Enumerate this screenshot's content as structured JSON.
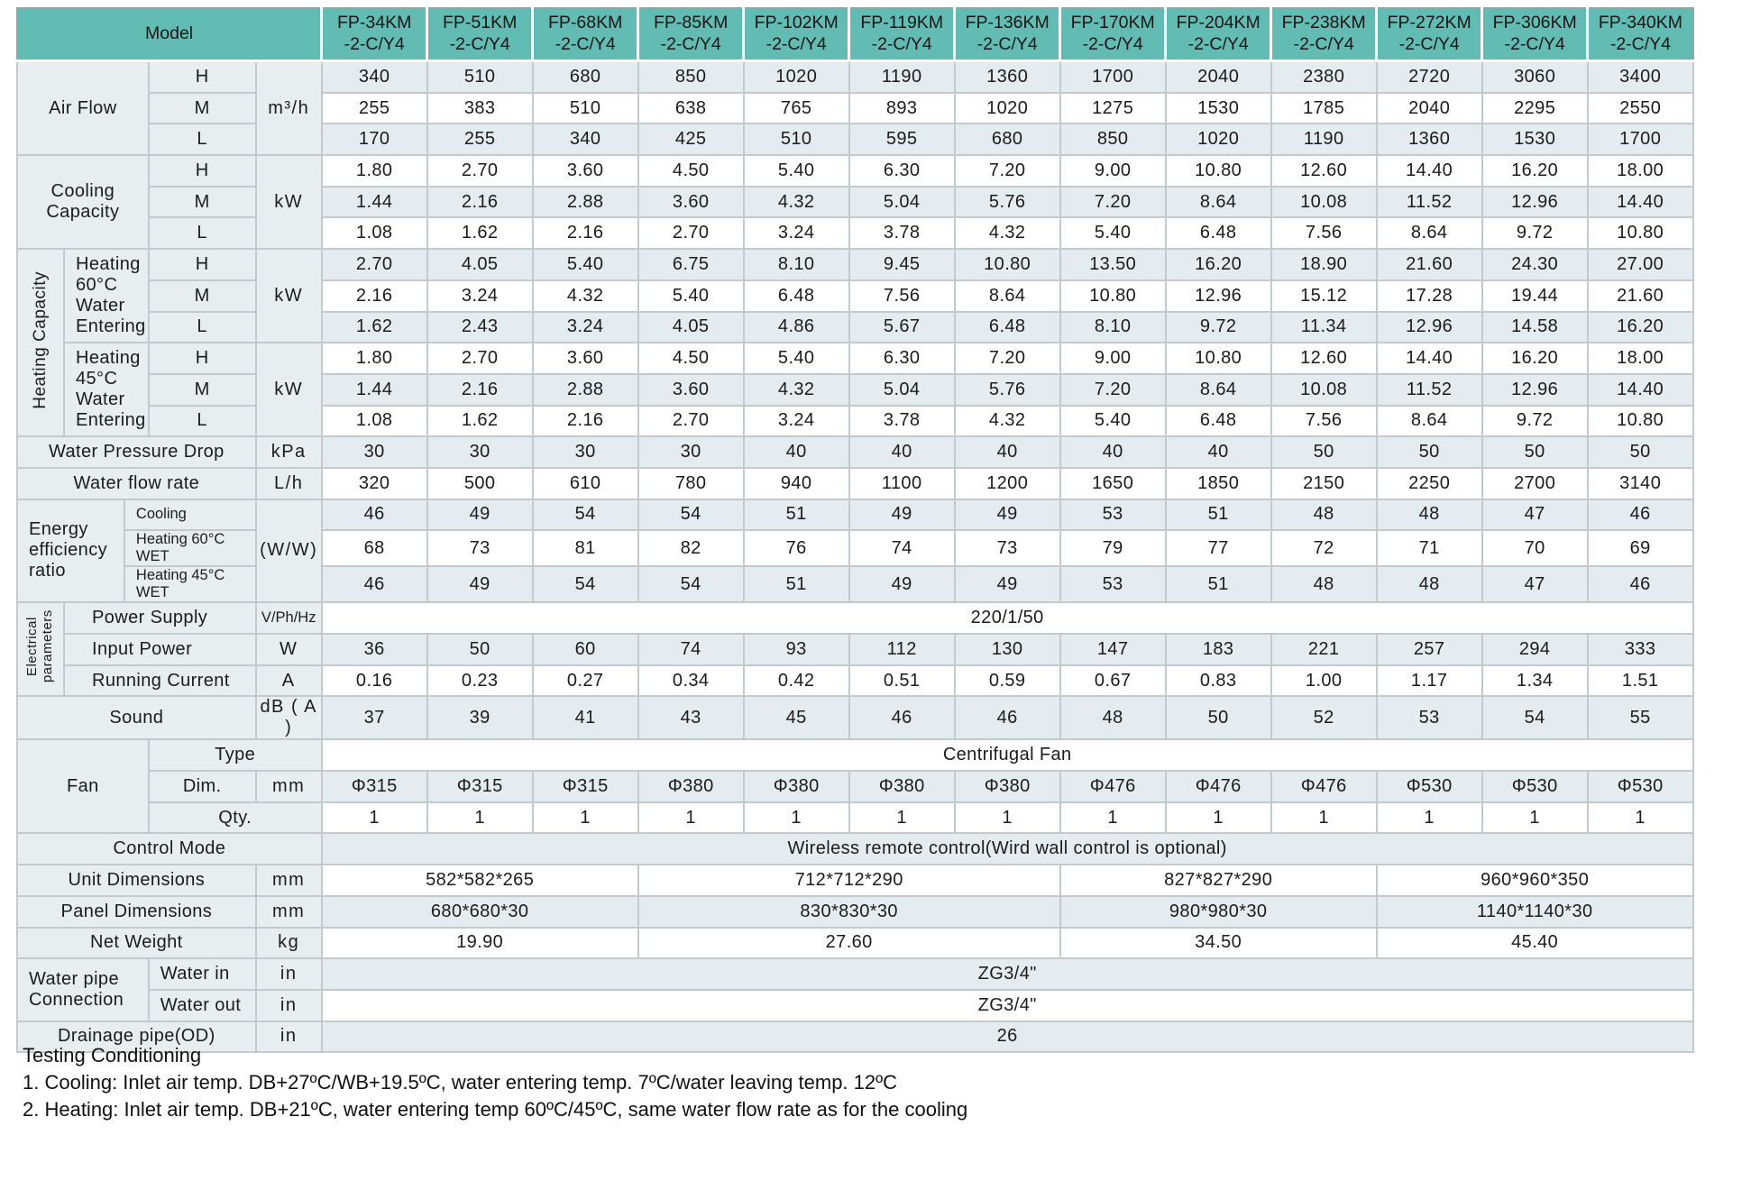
{
  "colors": {
    "teal": "#62bcb3",
    "labbg": "#e8eef0",
    "lightbg": "#e4ecef",
    "bmin": "#c3cacd",
    "bmaj": "#99a1a5",
    "text": "#1b1b1b"
  },
  "footer": {
    "title": "Testing Conditioning",
    "notes": [
      "1. Cooling: Inlet air temp. DB+27ºC/WB+19.5ºC, water entering temp. 7ºC/water leaving temp. 12ºC",
      "2. Heating: Inlet air temp. DB+21ºC, water entering temp 60ºC/45ºC, same water flow rate as for the cooling"
    ]
  },
  "table": {
    "header": {
      "cells": [
        {
          "t": "Model",
          "cs": 5,
          "n": "model-header"
        },
        {
          "t": "FP-34KM\n-2-C/Y4",
          "n": "model-column-header"
        },
        {
          "t": "FP-51KM\n-2-C/Y4",
          "n": "model-column-header"
        },
        {
          "t": "FP-68KM\n-2-C/Y4",
          "n": "model-column-header"
        },
        {
          "t": "FP-85KM\n-2-C/Y4",
          "n": "model-column-header"
        },
        {
          "t": "FP-102KM\n-2-C/Y4",
          "n": "model-column-header"
        },
        {
          "t": "FP-119KM\n-2-C/Y4",
          "n": "model-column-header"
        },
        {
          "t": "FP-136KM\n-2-C/Y4",
          "n": "model-column-header"
        },
        {
          "t": "FP-170KM\n-2-C/Y4",
          "n": "model-column-header"
        },
        {
          "t": "FP-204KM\n-2-C/Y4",
          "n": "model-column-header"
        },
        {
          "t": "FP-238KM\n-2-C/Y4",
          "n": "model-column-header"
        },
        {
          "t": "FP-272KM\n-2-C/Y4",
          "n": "model-column-header"
        },
        {
          "t": "FP-306KM\n-2-C/Y4",
          "n": "model-column-header"
        },
        {
          "t": "FP-340KM\n-2-C/Y4",
          "n": "model-column-header"
        }
      ]
    },
    "rows": [
      {
        "cells": [
          {
            "t": "Air Flow",
            "cs": 3,
            "rs": 3,
            "c": "lab",
            "n": "row-label-air-flow"
          },
          {
            "t": "H",
            "c": "lab",
            "n": "speed-label-h"
          },
          {
            "t": "m³/h",
            "rs": 3,
            "c": "lab u",
            "n": "unit-m3h"
          }
        ],
        "vc": "lt",
        "values": [
          "340",
          "510",
          "680",
          "850",
          "1020",
          "1190",
          "1360",
          "1700",
          "2040",
          "2380",
          "2720",
          "3060",
          "3400"
        ]
      },
      {
        "cells": [
          {
            "t": "M",
            "c": "lab",
            "n": "speed-label-m"
          }
        ],
        "vc": "wh",
        "values": [
          "255",
          "383",
          "510",
          "638",
          "765",
          "893",
          "1020",
          "1275",
          "1530",
          "1785",
          "2040",
          "2295",
          "2550"
        ]
      },
      {
        "cells": [
          {
            "t": "L",
            "c": "lab",
            "n": "speed-label-l"
          }
        ],
        "vc": "lt",
        "values": [
          "170",
          "255",
          "340",
          "425",
          "510",
          "595",
          "680",
          "850",
          "1020",
          "1190",
          "1360",
          "1530",
          "1700"
        ]
      },
      {
        "cells": [
          {
            "t": "Cooling Capacity",
            "cs": 3,
            "rs": 3,
            "c": "lab mj",
            "n": "row-label-cooling-capacity"
          },
          {
            "t": "H",
            "c": "lab mj",
            "n": "speed-label-h"
          },
          {
            "t": "kW",
            "rs": 3,
            "c": "lab u mj",
            "n": "unit-kw"
          }
        ],
        "vc": "wh mj",
        "values": [
          "1.80",
          "2.70",
          "3.60",
          "4.50",
          "5.40",
          "6.30",
          "7.20",
          "9.00",
          "10.80",
          "12.60",
          "14.40",
          "16.20",
          "18.00"
        ]
      },
      {
        "cells": [
          {
            "t": "M",
            "c": "lab",
            "n": "speed-label-m"
          }
        ],
        "vc": "lt",
        "values": [
          "1.44",
          "2.16",
          "2.88",
          "3.60",
          "4.32",
          "5.04",
          "5.76",
          "7.20",
          "8.64",
          "10.08",
          "11.52",
          "12.96",
          "14.40"
        ]
      },
      {
        "cells": [
          {
            "t": "L",
            "c": "lab",
            "n": "speed-label-l"
          }
        ],
        "vc": "wh",
        "values": [
          "1.08",
          "1.62",
          "2.16",
          "2.70",
          "3.24",
          "3.78",
          "4.32",
          "5.40",
          "6.48",
          "7.56",
          "8.64",
          "9.72",
          "10.80"
        ]
      },
      {
        "cells": [
          {
            "t": "Heating Capacity",
            "rs": 6,
            "c": "lab vert mj",
            "n": "row-label-heating-capacity"
          },
          {
            "t": "Heating 60°C Water Entering",
            "cs": 2,
            "rs": 3,
            "c": "lab left mj",
            "n": "row-label-heating-60"
          },
          {
            "t": "H",
            "c": "lab mj",
            "n": "speed-label-h"
          },
          {
            "t": "kW",
            "rs": 3,
            "c": "lab u mj",
            "n": "unit-kw"
          }
        ],
        "vc": "lt mj",
        "values": [
          "2.70",
          "4.05",
          "5.40",
          "6.75",
          "8.10",
          "9.45",
          "10.80",
          "13.50",
          "16.20",
          "18.90",
          "21.60",
          "24.30",
          "27.00"
        ]
      },
      {
        "cells": [
          {
            "t": "M",
            "c": "lab",
            "n": "speed-label-m"
          }
        ],
        "vc": "wh",
        "values": [
          "2.16",
          "3.24",
          "4.32",
          "5.40",
          "6.48",
          "7.56",
          "8.64",
          "10.80",
          "12.96",
          "15.12",
          "17.28",
          "19.44",
          "21.60"
        ]
      },
      {
        "cells": [
          {
            "t": "L",
            "c": "lab",
            "n": "speed-label-l"
          }
        ],
        "vc": "lt",
        "values": [
          "1.62",
          "2.43",
          "3.24",
          "4.05",
          "4.86",
          "5.67",
          "6.48",
          "8.10",
          "9.72",
          "11.34",
          "12.96",
          "14.58",
          "16.20"
        ]
      },
      {
        "cells": [
          {
            "t": "Heating 45°C Water Entering",
            "cs": 2,
            "rs": 3,
            "c": "lab left mj",
            "n": "row-label-heating-45"
          },
          {
            "t": "H",
            "c": "lab mj",
            "n": "speed-label-h"
          },
          {
            "t": "kW",
            "rs": 3,
            "c": "lab u mj",
            "n": "unit-kw"
          }
        ],
        "vc": "wh mj",
        "values": [
          "1.80",
          "2.70",
          "3.60",
          "4.50",
          "5.40",
          "6.30",
          "7.20",
          "9.00",
          "10.80",
          "12.60",
          "14.40",
          "16.20",
          "18.00"
        ]
      },
      {
        "cells": [
          {
            "t": "M",
            "c": "lab",
            "n": "speed-label-m"
          }
        ],
        "vc": "lt",
        "values": [
          "1.44",
          "2.16",
          "2.88",
          "3.60",
          "4.32",
          "5.04",
          "5.76",
          "7.20",
          "8.64",
          "10.08",
          "11.52",
          "12.96",
          "14.40"
        ]
      },
      {
        "cells": [
          {
            "t": "L",
            "c": "lab",
            "n": "speed-label-l"
          }
        ],
        "vc": "wh",
        "values": [
          "1.08",
          "1.62",
          "2.16",
          "2.70",
          "3.24",
          "3.78",
          "4.32",
          "5.40",
          "6.48",
          "7.56",
          "8.64",
          "9.72",
          "10.80"
        ]
      },
      {
        "cells": [
          {
            "t": "Water Pressure Drop",
            "cs": 4,
            "c": "lab mj",
            "n": "row-label-water-pressure-drop"
          },
          {
            "t": "kPa",
            "c": "lab u mj",
            "n": "unit-kpa"
          }
        ],
        "vc": "lt mj",
        "values": [
          "30",
          "30",
          "30",
          "30",
          "40",
          "40",
          "40",
          "40",
          "40",
          "50",
          "50",
          "50",
          "50"
        ]
      },
      {
        "cells": [
          {
            "t": "Water flow rate",
            "cs": 4,
            "c": "lab mj",
            "n": "row-label-water-flow-rate"
          },
          {
            "t": "L/h",
            "c": "lab u mj",
            "n": "unit-lh"
          }
        ],
        "vc": "wh mj",
        "values": [
          "320",
          "500",
          "610",
          "780",
          "940",
          "1100",
          "1200",
          "1650",
          "1850",
          "2150",
          "2250",
          "2700",
          "3140"
        ]
      },
      {
        "cells": [
          {
            "t": "Energy efficiency ratio",
            "cs": 2,
            "rs": 3,
            "c": "lab left mj",
            "n": "row-label-eer"
          },
          {
            "t": "Cooling",
            "cs": 2,
            "c": "lab sm left mj",
            "n": "row-label-eer-cooling"
          },
          {
            "t": "(W/W)",
            "rs": 3,
            "c": "lab u mj",
            "n": "unit-ww"
          }
        ],
        "vc": "lt mj",
        "values": [
          "46",
          "49",
          "54",
          "54",
          "51",
          "49",
          "49",
          "53",
          "51",
          "48",
          "48",
          "47",
          "46"
        ]
      },
      {
        "cells": [
          {
            "t": "Heating 60°C WET",
            "cs": 2,
            "c": "lab sm left",
            "n": "row-label-eer-heating60"
          }
        ],
        "vc": "wh",
        "values": [
          "68",
          "73",
          "81",
          "82",
          "76",
          "74",
          "73",
          "79",
          "77",
          "72",
          "71",
          "70",
          "69"
        ]
      },
      {
        "cells": [
          {
            "t": "Heating 45°C WET",
            "cs": 2,
            "c": "lab sm left",
            "n": "row-label-eer-heating45"
          }
        ],
        "vc": "lt",
        "values": [
          "46",
          "49",
          "54",
          "54",
          "51",
          "49",
          "49",
          "53",
          "51",
          "48",
          "48",
          "47",
          "46"
        ]
      },
      {
        "cells": [
          {
            "t": "Electrical parameters",
            "rs": 3,
            "c": "lab vert vsm mj",
            "n": "row-label-electrical-parameters"
          },
          {
            "t": "Power Supply",
            "cs": 3,
            "c": "lab left2 mj",
            "n": "row-label-power-supply"
          },
          {
            "t": "V/Ph/Hz",
            "c": "lab u sm mj",
            "n": "unit-vphhz"
          }
        ],
        "vc": "wh mj",
        "values": [
          {
            "t": "220/1/50",
            "cs": 13
          }
        ]
      },
      {
        "cells": [
          {
            "t": "Input Power",
            "cs": 3,
            "c": "lab left2",
            "n": "row-label-input-power"
          },
          {
            "t": "W",
            "c": "lab u",
            "n": "unit-w"
          }
        ],
        "vc": "lt",
        "values": [
          "36",
          "50",
          "60",
          "74",
          "93",
          "112",
          "130",
          "147",
          "183",
          "221",
          "257",
          "294",
          "333"
        ]
      },
      {
        "cells": [
          {
            "t": "Running Current",
            "cs": 3,
            "c": "lab left2",
            "n": "row-label-running-current"
          },
          {
            "t": "A",
            "c": "lab u",
            "n": "unit-a"
          }
        ],
        "vc": "wh",
        "values": [
          "0.16",
          "0.23",
          "0.27",
          "0.34",
          "0.42",
          "0.51",
          "0.59",
          "0.67",
          "0.83",
          "1.00",
          "1.17",
          "1.34",
          "1.51"
        ]
      },
      {
        "cells": [
          {
            "t": "Sound",
            "cs": 4,
            "c": "lab mj",
            "n": "row-label-sound"
          },
          {
            "t": "dB ( A )",
            "c": "lab u mj",
            "n": "unit-dba"
          }
        ],
        "vc": "lt mj",
        "values": [
          "37",
          "39",
          "41",
          "43",
          "45",
          "46",
          "46",
          "48",
          "50",
          "52",
          "53",
          "54",
          "55"
        ]
      },
      {
        "cells": [
          {
            "t": "Fan",
            "cs": 3,
            "rs": 3,
            "c": "lab mj",
            "n": "row-label-fan"
          },
          {
            "t": "Type",
            "cs": 2,
            "c": "lab mj",
            "n": "row-label-fan-type"
          }
        ],
        "vc": "wh mj",
        "values": [
          {
            "t": "Centrifugal Fan",
            "cs": 13
          }
        ]
      },
      {
        "cells": [
          {
            "t": "Dim.",
            "c": "lab",
            "n": "row-label-fan-dim"
          },
          {
            "t": "mm",
            "c": "lab u",
            "n": "unit-mm"
          }
        ],
        "vc": "lt",
        "values": [
          "Φ315",
          "Φ315",
          "Φ315",
          "Φ380",
          "Φ380",
          "Φ380",
          "Φ380",
          "Φ476",
          "Φ476",
          "Φ476",
          "Φ530",
          "Φ530",
          "Φ530"
        ]
      },
      {
        "cells": [
          {
            "t": "Qty.",
            "cs": 2,
            "c": "lab",
            "n": "row-label-fan-qty"
          }
        ],
        "vc": "wh",
        "values": [
          "1",
          "1",
          "1",
          "1",
          "1",
          "1",
          "1",
          "1",
          "1",
          "1",
          "1",
          "1",
          "1"
        ]
      },
      {
        "cells": [
          {
            "t": "Control Mode",
            "cs": 5,
            "c": "lab mj",
            "n": "row-label-control-mode"
          }
        ],
        "vc": "lt mj",
        "values": [
          {
            "t": "Wireless remote control(Wird wall control is optional)",
            "cs": 13
          }
        ]
      },
      {
        "cells": [
          {
            "t": "Unit Dimensions",
            "cs": 4,
            "c": "lab mj",
            "n": "row-label-unit-dimensions"
          },
          {
            "t": "mm",
            "c": "lab u mj",
            "n": "unit-mm"
          }
        ],
        "vc": "wh mj",
        "values": [
          {
            "t": "582*582*265",
            "cs": 3
          },
          {
            "t": "712*712*290",
            "cs": 4
          },
          {
            "t": "827*827*290",
            "cs": 3
          },
          {
            "t": "960*960*350",
            "cs": 3
          }
        ]
      },
      {
        "cells": [
          {
            "t": "Panel Dimensions",
            "cs": 4,
            "c": "lab mj",
            "n": "row-label-panel-dimensions"
          },
          {
            "t": "mm",
            "c": "lab u mj",
            "n": "unit-mm"
          }
        ],
        "vc": "lt mj",
        "values": [
          {
            "t": "680*680*30",
            "cs": 3
          },
          {
            "t": "830*830*30",
            "cs": 4
          },
          {
            "t": "980*980*30",
            "cs": 3
          },
          {
            "t": "1140*1140*30",
            "cs": 3
          }
        ]
      },
      {
        "cells": [
          {
            "t": "Net Weight",
            "cs": 4,
            "c": "lab mj",
            "n": "row-label-net-weight"
          },
          {
            "t": "kg",
            "c": "lab u mj",
            "n": "unit-kg"
          }
        ],
        "vc": "wh mj",
        "values": [
          {
            "t": "19.90",
            "cs": 3
          },
          {
            "t": "27.60",
            "cs": 4
          },
          {
            "t": "34.50",
            "cs": 3
          },
          {
            "t": "45.40",
            "cs": 3
          }
        ]
      },
      {
        "cells": [
          {
            "t": "Water pipe Connection",
            "cs": 3,
            "rs": 2,
            "c": "lab left mj",
            "n": "row-label-water-pipe-connection"
          },
          {
            "t": "Water in",
            "c": "lab left mj",
            "n": "row-label-water-in"
          },
          {
            "t": "in",
            "c": "lab u mj",
            "n": "unit-in"
          }
        ],
        "vc": "lt mj",
        "values": [
          {
            "t": "ZG3/4\"",
            "cs": 13
          }
        ]
      },
      {
        "cells": [
          {
            "t": "Water out",
            "c": "lab left",
            "n": "row-label-water-out"
          },
          {
            "t": "in",
            "c": "lab u",
            "n": "unit-in"
          }
        ],
        "vc": "wh",
        "values": [
          {
            "t": "ZG3/4\"",
            "cs": 13
          }
        ]
      },
      {
        "cells": [
          {
            "t": "Drainage pipe(OD)",
            "cs": 4,
            "c": "lab mj",
            "n": "row-label-drainage-pipe"
          },
          {
            "t": "in",
            "c": "lab u mj",
            "n": "unit-in"
          }
        ],
        "vc": "lt mj",
        "values": [
          {
            "t": "26",
            "cs": 13
          }
        ]
      }
    ]
  }
}
